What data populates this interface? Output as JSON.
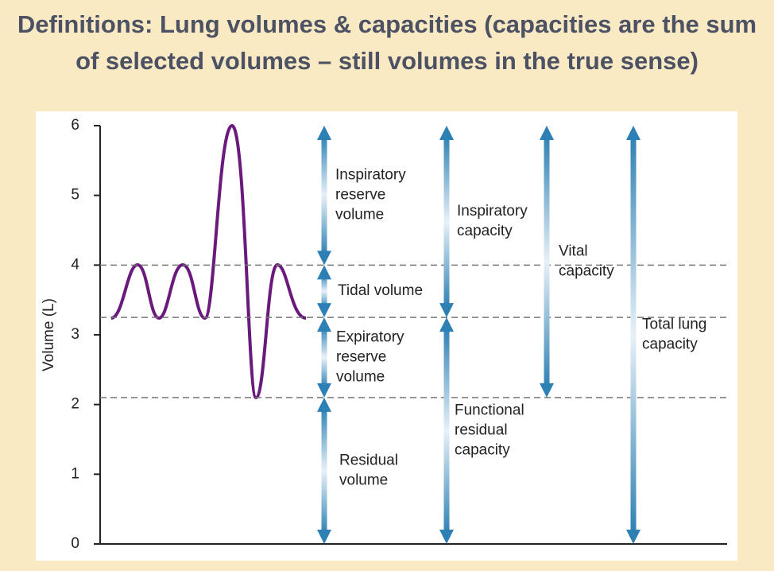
{
  "title": "Definitions: Lung volumes & capacities (capacities are the sum of selected volumes – still volumes in the true sense)",
  "axis": {
    "label": "Volume (L)",
    "ylim": [
      0,
      6
    ],
    "yticks": [
      0,
      1,
      2,
      3,
      4,
      5,
      6
    ]
  },
  "levels": [
    4,
    3.25,
    2.1
  ],
  "arrows": [
    {
      "label": [
        "Inspiratory",
        "reserve",
        "volume"
      ],
      "from": 4,
      "to": 6
    },
    {
      "label": [
        "Tidal volume"
      ],
      "from": 3.25,
      "to": 4
    },
    {
      "label": [
        "Expiratory",
        "reserve",
        "volume"
      ],
      "from": 2.1,
      "to": 3.25
    },
    {
      "label": [
        "Residual",
        "volume"
      ],
      "from": 0,
      "to": 2.1
    },
    {
      "label": [
        "Inspiratory",
        "capacity"
      ],
      "from": 3.25,
      "to": 6
    },
    {
      "label": [
        "Functional",
        "residual",
        "capacity"
      ],
      "from": 0,
      "to": 3.25
    },
    {
      "label": [
        "Vital",
        "capacity"
      ],
      "from": 2.1,
      "to": 6
    },
    {
      "label": [
        "Total lung",
        "capacity"
      ],
      "from": 0,
      "to": 6
    }
  ]
}
